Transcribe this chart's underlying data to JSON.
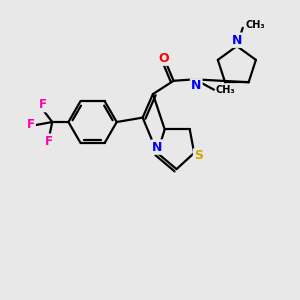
{
  "background_color": "#e8e8e8",
  "atom_colors": {
    "C": "#000000",
    "N": "#0000ff",
    "O": "#ff0000",
    "S": "#ccaa00",
    "F": "#ff00aa"
  },
  "bond_color": "#000000",
  "bond_width": 1.6,
  "figsize": [
    3.0,
    3.0
  ],
  "dpi": 100
}
